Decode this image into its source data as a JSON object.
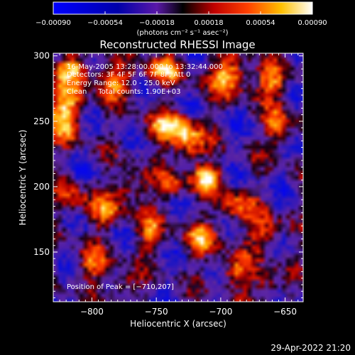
{
  "chart_data": {
    "type": "heatmap",
    "title": "Reconstructed RHESSI Image",
    "xlabel": "Heliocentric X (arcsec)",
    "ylabel": "Heliocentric Y (arcsec)",
    "xlim": [
      -830,
      -636
    ],
    "ylim": [
      112,
      302
    ],
    "x_ticks": [
      {
        "value": -800,
        "label": "−800"
      },
      {
        "value": -750,
        "label": "−750"
      },
      {
        "value": -700,
        "label": "−700"
      },
      {
        "value": -650,
        "label": "−650"
      }
    ],
    "y_ticks": [
      {
        "value": 150,
        "label": "150"
      },
      {
        "value": 200,
        "label": "200"
      },
      {
        "value": 250,
        "label": "250"
      },
      {
        "value": 300,
        "label": "300"
      }
    ],
    "colorbar": {
      "min": -0.0009,
      "max": 0.0009,
      "tick_labels": [
        "−0.00090",
        "−0.00054",
        "−0.00018",
        "0.00018",
        "0.00054",
        "0.00090"
      ],
      "units": "(photons cm⁻² s⁻¹ asec⁻²)"
    },
    "annotations": [
      "16-May-2005 13:28:00.000 to 13:32:44.000",
      "Detectors: 3F 4F 5F 6F 7F 8F, Att 0",
      "Energy Range: 12.0 - 25.0 keV",
      "Clean     Total counts: 1.90E+03"
    ],
    "peak_label": "Position of Peak = [−710,207]",
    "peak": {
      "x": -710,
      "y": 207
    },
    "sources": [
      {
        "x": -710,
        "y": 207,
        "amp": 1.0,
        "sx": 8,
        "sy": 7
      },
      {
        "x": -820,
        "y": 257,
        "amp": 0.95,
        "sx": 9,
        "sy": 14
      },
      {
        "x": -815,
        "y": 290,
        "amp": 0.8,
        "sx": 10,
        "sy": 7
      },
      {
        "x": -783,
        "y": 280,
        "amp": 0.7,
        "sx": 12,
        "sy": 8
      },
      {
        "x": -745,
        "y": 290,
        "amp": 0.75,
        "sx": 10,
        "sy": 7
      },
      {
        "x": -693,
        "y": 285,
        "amp": 0.85,
        "sx": 12,
        "sy": 10
      },
      {
        "x": -660,
        "y": 280,
        "amp": 0.7,
        "sx": 9,
        "sy": 8
      },
      {
        "x": -740,
        "y": 245,
        "amp": 0.75,
        "sx": 14,
        "sy": 9
      },
      {
        "x": -725,
        "y": 232,
        "amp": 0.7,
        "sx": 8,
        "sy": 10
      },
      {
        "x": -655,
        "y": 245,
        "amp": 0.7,
        "sx": 7,
        "sy": 12
      },
      {
        "x": -770,
        "y": 200,
        "amp": 0.6,
        "sx": 9,
        "sy": 8
      },
      {
        "x": -738,
        "y": 200,
        "amp": 0.55,
        "sx": 8,
        "sy": 8
      },
      {
        "x": -690,
        "y": 185,
        "amp": 0.6,
        "sx": 10,
        "sy": 9
      },
      {
        "x": -790,
        "y": 180,
        "amp": 0.6,
        "sx": 10,
        "sy": 8
      },
      {
        "x": -815,
        "y": 190,
        "amp": 0.55,
        "sx": 8,
        "sy": 8
      },
      {
        "x": -755,
        "y": 165,
        "amp": 0.55,
        "sx": 8,
        "sy": 10
      },
      {
        "x": -715,
        "y": 160,
        "amp": 0.6,
        "sx": 10,
        "sy": 9
      },
      {
        "x": -665,
        "y": 165,
        "amp": 0.6,
        "sx": 9,
        "sy": 10
      },
      {
        "x": -800,
        "y": 140,
        "amp": 0.6,
        "sx": 10,
        "sy": 8
      },
      {
        "x": -690,
        "y": 135,
        "amp": 0.65,
        "sx": 9,
        "sy": 8
      },
      {
        "x": -665,
        "y": 125,
        "amp": 0.55,
        "sx": 8,
        "sy": 8
      },
      {
        "x": -775,
        "y": 125,
        "amp": 0.5,
        "sx": 8,
        "sy": 7
      }
    ]
  },
  "timestamp": "29-Apr-2022 21:20"
}
